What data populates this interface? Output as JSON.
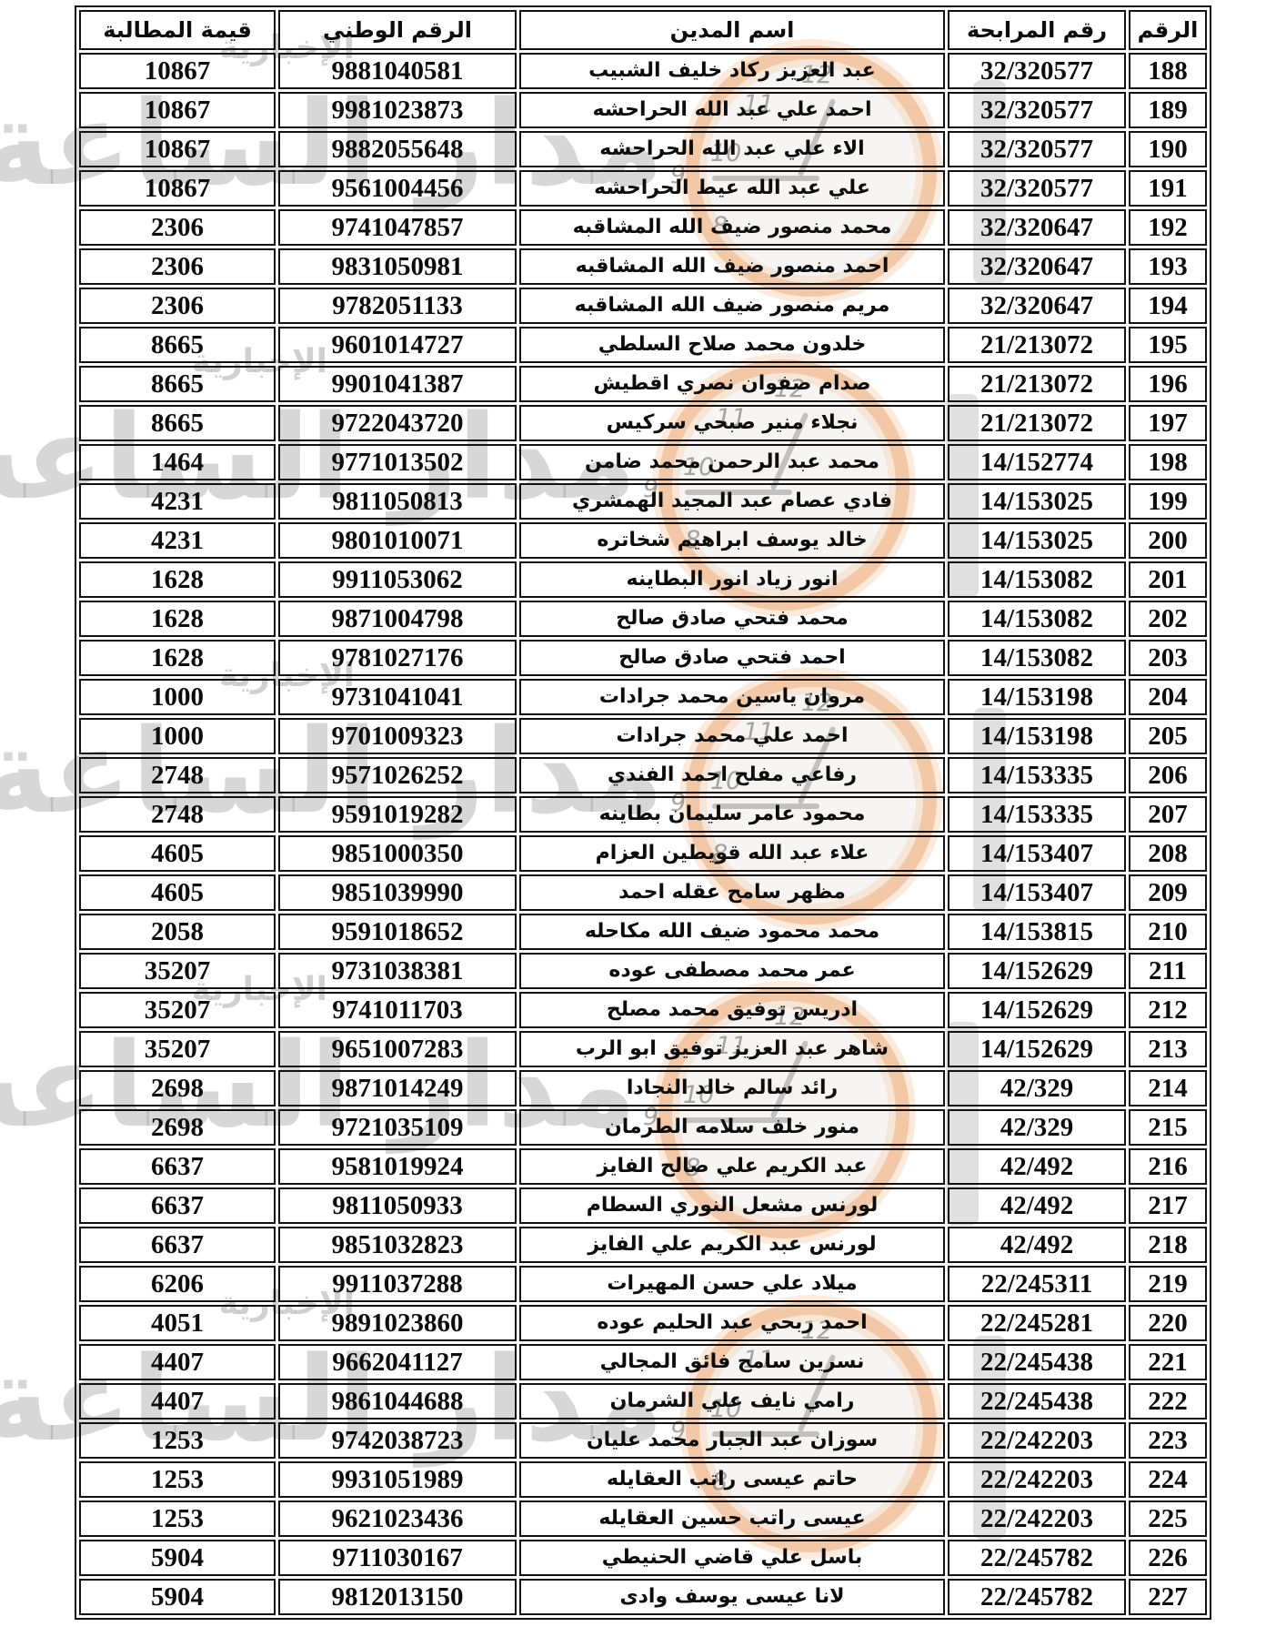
{
  "document": {
    "language": "ar",
    "direction": "rtl",
    "type": "debtors-claims-list"
  },
  "watermark": {
    "brand": "مدار الساعة",
    "tagline": "الإخبارية",
    "clock_numbers": [
      "12",
      "11",
      "10",
      "9",
      "8"
    ],
    "ring_color": "#f09c58",
    "gray_color": "#969696"
  },
  "table": {
    "headers": [
      {
        "key": "seq",
        "label": "الرقم"
      },
      {
        "key": "murabaha_no",
        "label": "رقم المرابحة"
      },
      {
        "key": "debtor_name",
        "label": "اسم المدين"
      },
      {
        "key": "national_id",
        "label": "الرقم الوطني"
      },
      {
        "key": "claim_value",
        "label": "قيمة المطالبة"
      }
    ],
    "rows": [
      {
        "seq": "188",
        "murabaha_no": "32/320577",
        "debtor_name": "عبد العزيز ركاد خليف الشبيب",
        "national_id": "9881040581",
        "claim_value": "10867"
      },
      {
        "seq": "189",
        "murabaha_no": "32/320577",
        "debtor_name": "احمد علي عبد الله الحراحشه",
        "national_id": "9981023873",
        "claim_value": "10867"
      },
      {
        "seq": "190",
        "murabaha_no": "32/320577",
        "debtor_name": "الاء علي عبد الله الحراحشه",
        "national_id": "9882055648",
        "claim_value": "10867"
      },
      {
        "seq": "191",
        "murabaha_no": "32/320577",
        "debtor_name": "علي عبد الله عيط الحراحشه",
        "national_id": "9561004456",
        "claim_value": "10867"
      },
      {
        "seq": "192",
        "murabaha_no": "32/320647",
        "debtor_name": "محمد منصور ضيف الله المشاقبه",
        "national_id": "9741047857",
        "claim_value": "2306"
      },
      {
        "seq": "193",
        "murabaha_no": "32/320647",
        "debtor_name": "احمد منصور ضيف الله المشاقبه",
        "national_id": "9831050981",
        "claim_value": "2306"
      },
      {
        "seq": "194",
        "murabaha_no": "32/320647",
        "debtor_name": "مريم منصور ضيف الله المشاقبه",
        "national_id": "9782051133",
        "claim_value": "2306"
      },
      {
        "seq": "195",
        "murabaha_no": "21/213072",
        "debtor_name": "خلدون محمد صلاح السلطي",
        "national_id": "9601014727",
        "claim_value": "8665"
      },
      {
        "seq": "196",
        "murabaha_no": "21/213072",
        "debtor_name": "صدام صفوان نصري اقطيش",
        "national_id": "9901041387",
        "claim_value": "8665"
      },
      {
        "seq": "197",
        "murabaha_no": "21/213072",
        "debtor_name": "نجلاء منير صبحي سركيس",
        "national_id": "9722043720",
        "claim_value": "8665"
      },
      {
        "seq": "198",
        "murabaha_no": "14/152774",
        "debtor_name": "محمد عبد الرحمن محمد ضامن",
        "national_id": "9771013502",
        "claim_value": "1464"
      },
      {
        "seq": "199",
        "murabaha_no": "14/153025",
        "debtor_name": "فادي عصام عبد المجيد الهمشري",
        "national_id": "9811050813",
        "claim_value": "4231"
      },
      {
        "seq": "200",
        "murabaha_no": "14/153025",
        "debtor_name": "خالد يوسف ابراهيم شخاتره",
        "national_id": "9801010071",
        "claim_value": "4231"
      },
      {
        "seq": "201",
        "murabaha_no": "14/153082",
        "debtor_name": "انور زياد انور البطاينه",
        "national_id": "9911053062",
        "claim_value": "1628"
      },
      {
        "seq": "202",
        "murabaha_no": "14/153082",
        "debtor_name": "محمد فتحي صادق صالح",
        "national_id": "9871004798",
        "claim_value": "1628"
      },
      {
        "seq": "203",
        "murabaha_no": "14/153082",
        "debtor_name": "احمد فتحي صادق صالح",
        "national_id": "9781027176",
        "claim_value": "1628"
      },
      {
        "seq": "204",
        "murabaha_no": "14/153198",
        "debtor_name": "مروان ياسين محمد جرادات",
        "national_id": "9731041041",
        "claim_value": "1000"
      },
      {
        "seq": "205",
        "murabaha_no": "14/153198",
        "debtor_name": "احمد علي محمد جرادات",
        "national_id": "9701009323",
        "claim_value": "1000"
      },
      {
        "seq": "206",
        "murabaha_no": "14/153335",
        "debtor_name": "رفاعي مفلح احمد الفندي",
        "national_id": "9571026252",
        "claim_value": "2748"
      },
      {
        "seq": "207",
        "murabaha_no": "14/153335",
        "debtor_name": "محمود عامر سليمان بطاينه",
        "national_id": "9591019282",
        "claim_value": "2748"
      },
      {
        "seq": "208",
        "murabaha_no": "14/153407",
        "debtor_name": "علاء عبد الله قويطين العزام",
        "national_id": "9851000350",
        "claim_value": "4605"
      },
      {
        "seq": "209",
        "murabaha_no": "14/153407",
        "debtor_name": "مظهر سامح عقله احمد",
        "national_id": "9851039990",
        "claim_value": "4605"
      },
      {
        "seq": "210",
        "murabaha_no": "14/153815",
        "debtor_name": "محمد محمود ضيف الله مكاحله",
        "national_id": "9591018652",
        "claim_value": "2058"
      },
      {
        "seq": "211",
        "murabaha_no": "14/152629",
        "debtor_name": "عمر محمد مصطفى عوده",
        "national_id": "9731038381",
        "claim_value": "35207"
      },
      {
        "seq": "212",
        "murabaha_no": "14/152629",
        "debtor_name": "ادريس توفيق محمد مصلح",
        "national_id": "9741011703",
        "claim_value": "35207"
      },
      {
        "seq": "213",
        "murabaha_no": "14/152629",
        "debtor_name": "شاهر عبد العزيز توفيق ابو الرب",
        "national_id": "9651007283",
        "claim_value": "35207"
      },
      {
        "seq": "214",
        "murabaha_no": "42/329",
        "debtor_name": "رائد سالم خالد النجادا",
        "national_id": "9871014249",
        "claim_value": "2698"
      },
      {
        "seq": "215",
        "murabaha_no": "42/329",
        "debtor_name": "منور خلف سلامه الطرمان",
        "national_id": "9721035109",
        "claim_value": "2698"
      },
      {
        "seq": "216",
        "murabaha_no": "42/492",
        "debtor_name": "عبد الكريم علي صالح الفايز",
        "national_id": "9581019924",
        "claim_value": "6637"
      },
      {
        "seq": "217",
        "murabaha_no": "42/492",
        "debtor_name": "لورنس مشعل النوري السطام",
        "national_id": "9811050933",
        "claim_value": "6637"
      },
      {
        "seq": "218",
        "murabaha_no": "42/492",
        "debtor_name": "لورنس عبد الكريم علي الفايز",
        "national_id": "9851032823",
        "claim_value": "6637"
      },
      {
        "seq": "219",
        "murabaha_no": "22/245311",
        "debtor_name": "ميلاد علي حسن المهيرات",
        "national_id": "9911037288",
        "claim_value": "6206"
      },
      {
        "seq": "220",
        "murabaha_no": "22/245281",
        "debtor_name": "احمد ربحي عبد الحليم عوده",
        "national_id": "9891023860",
        "claim_value": "4051"
      },
      {
        "seq": "221",
        "murabaha_no": "22/245438",
        "debtor_name": "نسرين سامح فائق المجالي",
        "national_id": "9662041127",
        "claim_value": "4407"
      },
      {
        "seq": "222",
        "murabaha_no": "22/245438",
        "debtor_name": "رامي نايف علي الشرمان",
        "national_id": "9861044688",
        "claim_value": "4407"
      },
      {
        "seq": "223",
        "murabaha_no": "22/242203",
        "debtor_name": "سوزان عبد الجبار محمد عليان",
        "national_id": "9742038723",
        "claim_value": "1253"
      },
      {
        "seq": "224",
        "murabaha_no": "22/242203",
        "debtor_name": "حاتم عيسى راتب العقايله",
        "national_id": "9931051989",
        "claim_value": "1253"
      },
      {
        "seq": "225",
        "murabaha_no": "22/242203",
        "debtor_name": "عيسى راتب حسين العقايله",
        "national_id": "9621023436",
        "claim_value": "1253"
      },
      {
        "seq": "226",
        "murabaha_no": "22/245782",
        "debtor_name": "باسل علي قاضي الحنيطي",
        "national_id": "9711030167",
        "claim_value": "5904"
      },
      {
        "seq": "227",
        "murabaha_no": "22/245782",
        "debtor_name": "لانا عيسى يوسف وادى",
        "national_id": "9812013150",
        "claim_value": "5904"
      }
    ]
  }
}
